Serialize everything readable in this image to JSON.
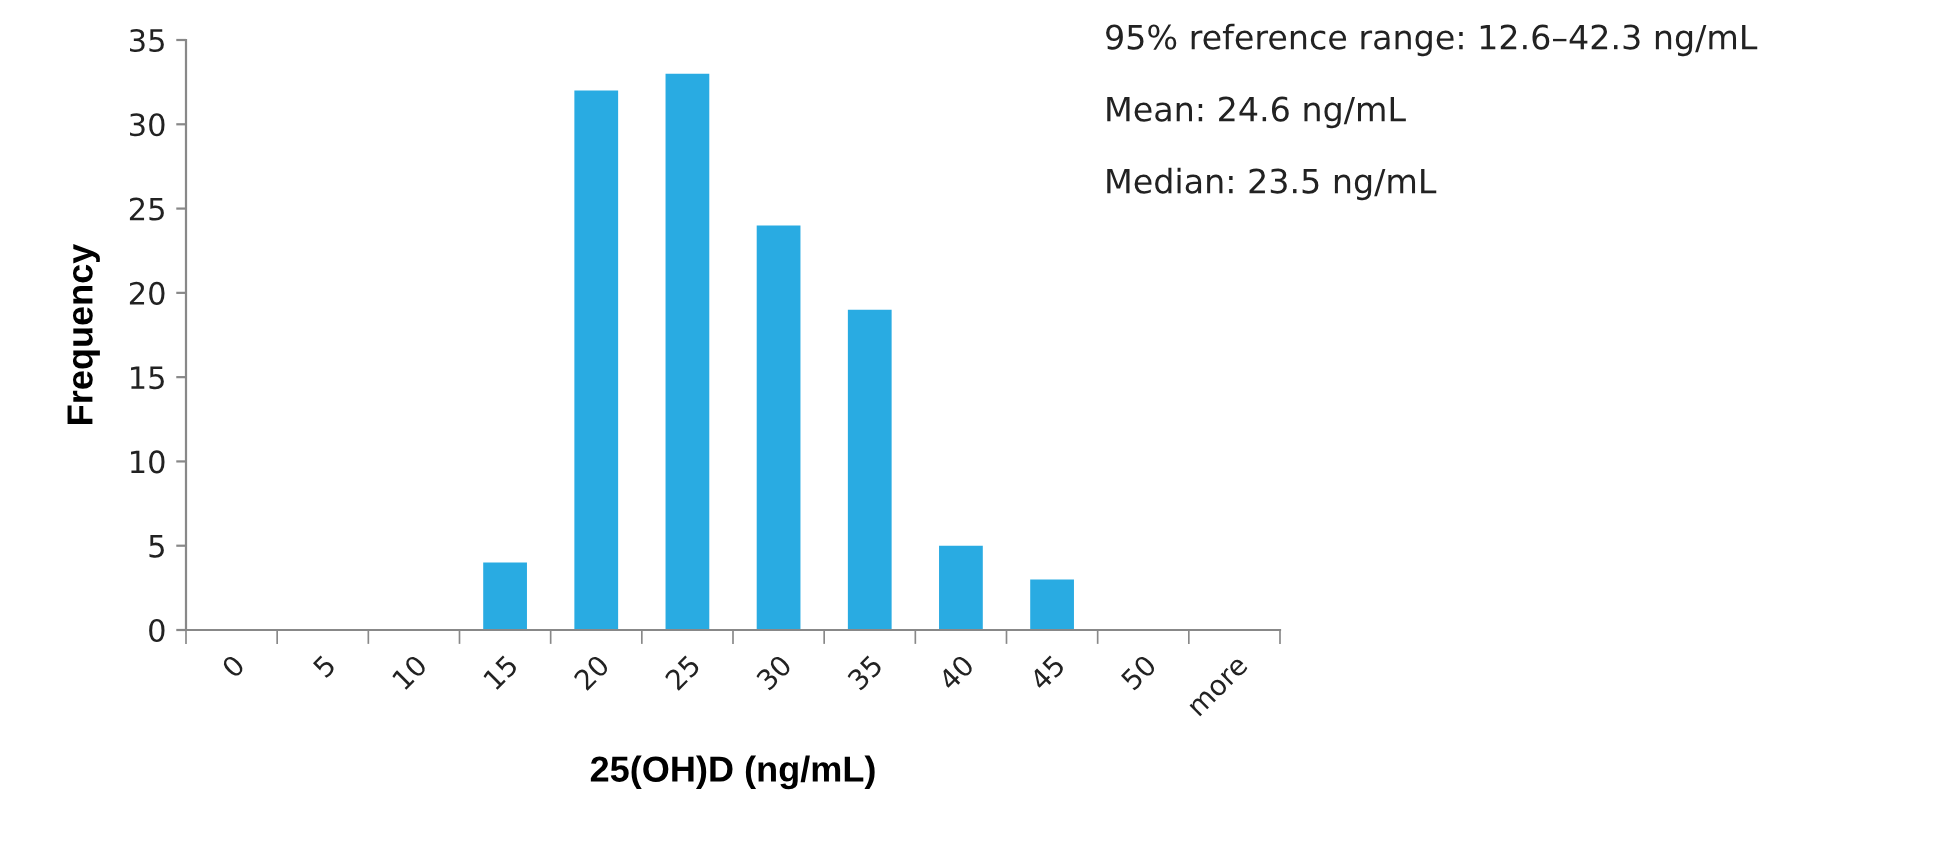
{
  "chart_data": {
    "type": "bar",
    "categories": [
      "0",
      "5",
      "10",
      "15",
      "20",
      "25",
      "30",
      "35",
      "40",
      "45",
      "50",
      "more"
    ],
    "values": [
      0,
      0,
      0,
      4,
      32,
      33,
      24,
      19,
      5,
      3,
      0,
      0
    ],
    "color": "#29abe2",
    "xlabel": "25(OH)D (ng/mL)",
    "ylabel": "Frequency",
    "ylim": [
      0,
      35
    ],
    "yticks": [
      0,
      5,
      10,
      15,
      20,
      25,
      30,
      35
    ],
    "grid": false,
    "annotations": [
      "95% reference range: 12.6–42.3 ng/mL",
      "Mean: 24.6 ng/mL",
      "Median: 23.5 ng/mL"
    ]
  }
}
